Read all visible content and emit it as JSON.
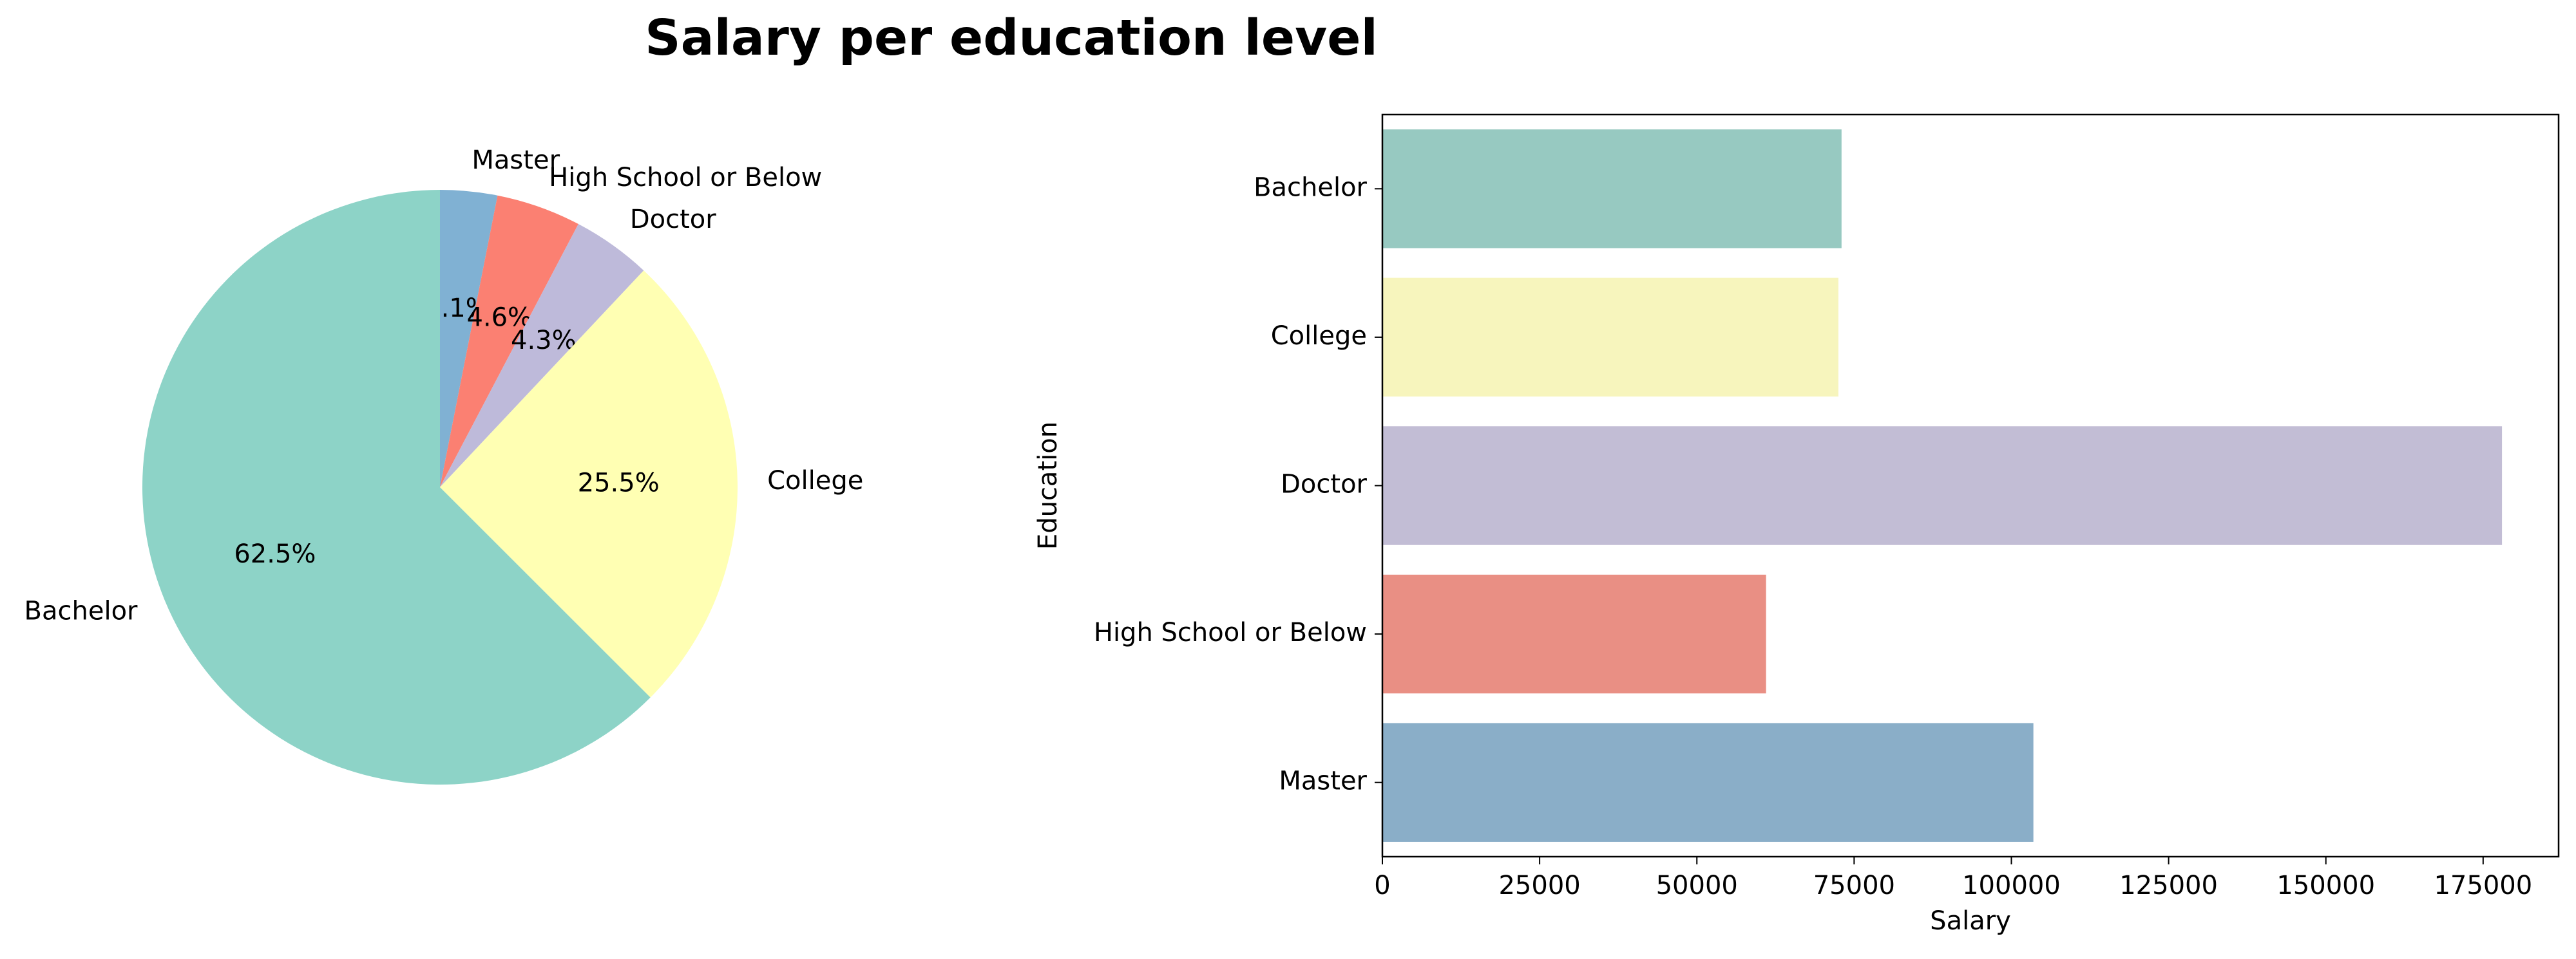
{
  "title": "Salary per education level",
  "chart_data": [
    {
      "type": "pie",
      "labels": [
        "Master",
        "High School or Below",
        "Doctor",
        "College",
        "Bachelor"
      ],
      "values": [
        3.1,
        4.6,
        4.3,
        25.5,
        62.5
      ],
      "pct_labels": [
        "3.1%",
        "4.6%",
        "4.3%",
        "25.5%",
        "62.5%"
      ],
      "colors": [
        "#80b1d3",
        "#fb8072",
        "#bebada",
        "#ffffb3",
        "#8dd3c7"
      ],
      "start_angle_deg": 90,
      "direction": "clockwise"
    },
    {
      "type": "bar",
      "orientation": "horizontal",
      "categories": [
        "Bachelor",
        "College",
        "Doctor",
        "High School or Below",
        "Master"
      ],
      "values": [
        73000,
        72500,
        178000,
        61000,
        103500
      ],
      "colors": [
        "#97c9c1",
        "#f7f5bd",
        "#c2bdd5",
        "#e98f84",
        "#8aaec8"
      ],
      "xlabel": "Salary",
      "ylabel": "Education",
      "xlim": [
        0,
        187000
      ],
      "xticks": [
        0,
        25000,
        50000,
        75000,
        100000,
        125000,
        150000,
        175000
      ],
      "xtick_labels": [
        "0",
        "25000",
        "50000",
        "75000",
        "100000",
        "125000",
        "150000",
        "175000"
      ],
      "grid": false
    }
  ]
}
